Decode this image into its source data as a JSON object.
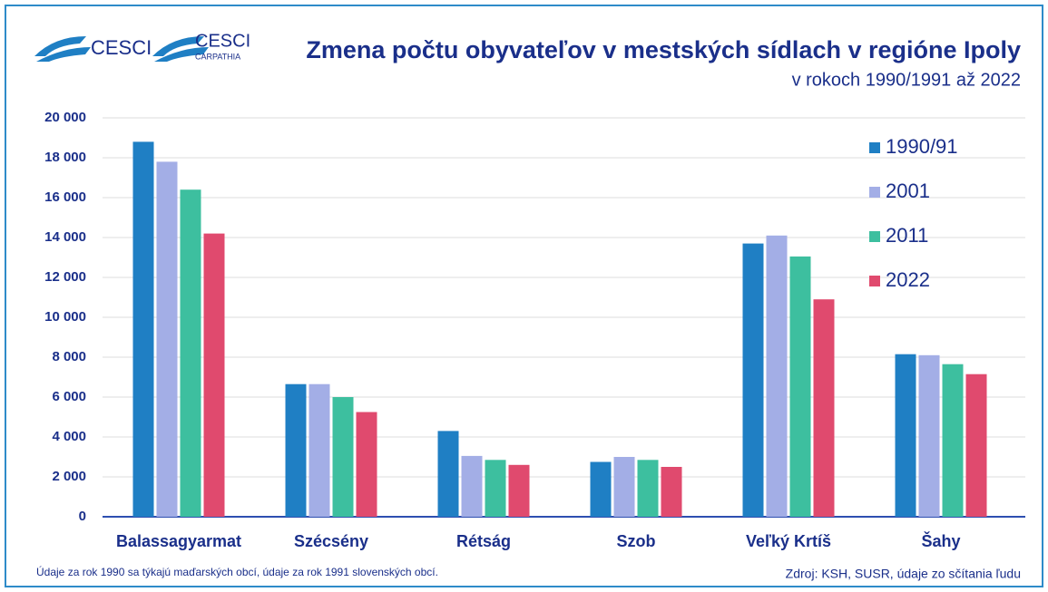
{
  "logos": [
    "CESCI",
    "CESCI",
    "CARPATHIA"
  ],
  "chart_data": {
    "type": "bar",
    "title": "Zmena počtu obyvateľov v mestských sídlach v regióne Ipoly",
    "subtitle": "v rokoch 1990/1991 až 2022",
    "categories": [
      "Balassagyarmat",
      "Szécsény",
      "Rétság",
      "Szob",
      "Veľký Krtíš",
      "Šahy"
    ],
    "series": [
      {
        "name": "1990/91",
        "color": "#1f7fc4",
        "values": [
          18800,
          6650,
          4300,
          2750,
          13700,
          8150
        ]
      },
      {
        "name": "2001",
        "color": "#a3aee6",
        "values": [
          17800,
          6650,
          3050,
          3000,
          14100,
          8100
        ]
      },
      {
        "name": "2011",
        "color": "#3dbf9f",
        "values": [
          16400,
          6000,
          2850,
          2850,
          13050,
          7650
        ]
      },
      {
        "name": "2022",
        "color": "#e04a6e",
        "values": [
          14200,
          5250,
          2600,
          2500,
          10900,
          7150
        ]
      }
    ],
    "ylim": [
      0,
      20000
    ],
    "yticks": [
      0,
      {
        "value": 2000,
        "label": "2 000"
      },
      {
        "value": 4000,
        "label": "4 000"
      },
      {
        "value": 6000,
        "label": "6 000"
      },
      {
        "value": 8000,
        "label": "8 000"
      },
      {
        "value": 10000,
        "label": "10 000"
      },
      {
        "value": 12000,
        "label": "12 000"
      },
      {
        "value": 14000,
        "label": "14 000"
      },
      {
        "value": 16000,
        "label": "16 000"
      },
      {
        "value": 18000,
        "label": "18 000"
      },
      {
        "value": 20000,
        "label": "20 000"
      }
    ],
    "grid": true,
    "legend": "right",
    "notes": [
      "Údaje za rok 1990 sa týkajú maďarských obcí, údaje za rok 1991 slovenských obcí.",
      "Zdroj: KSH, SUSR, údaje zo sčítania ľudu"
    ]
  }
}
